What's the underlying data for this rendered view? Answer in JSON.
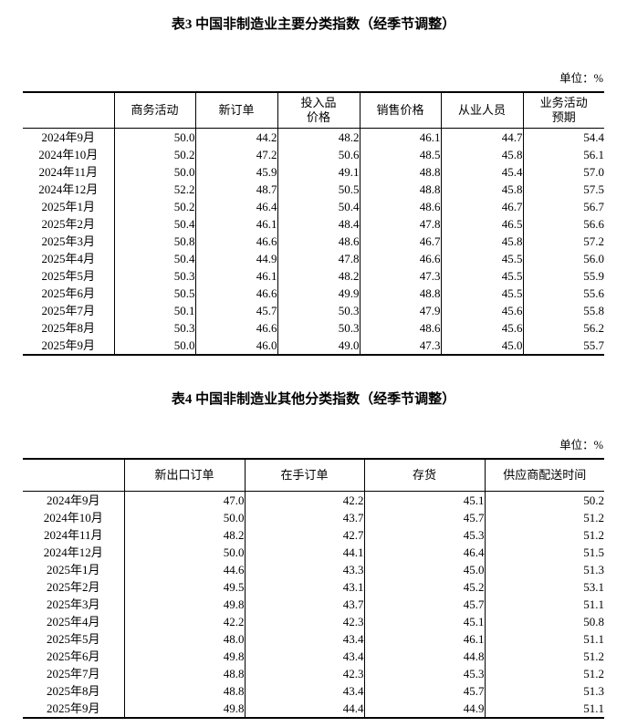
{
  "table3": {
    "title": "表3 中国非制造业主要分类指数（经季节调整）",
    "unit_label": "单位：%",
    "columns": [
      "商务活动",
      "新订单",
      "投入品\n价格",
      "销售价格",
      "从业人员",
      "业务活动\n预期"
    ],
    "rows": [
      {
        "month": "2024年9月",
        "values": [
          "50.0",
          "44.2",
          "48.2",
          "46.1",
          "44.7",
          "54.4"
        ]
      },
      {
        "month": "2024年10月",
        "values": [
          "50.2",
          "47.2",
          "50.6",
          "48.5",
          "45.8",
          "56.1"
        ]
      },
      {
        "month": "2024年11月",
        "values": [
          "50.0",
          "45.9",
          "49.1",
          "48.8",
          "45.4",
          "57.0"
        ]
      },
      {
        "month": "2024年12月",
        "values": [
          "52.2",
          "48.7",
          "50.5",
          "48.8",
          "45.8",
          "57.5"
        ]
      },
      {
        "month": "2025年1月",
        "values": [
          "50.2",
          "46.4",
          "50.4",
          "48.6",
          "46.7",
          "56.7"
        ]
      },
      {
        "month": "2025年2月",
        "values": [
          "50.4",
          "46.1",
          "48.4",
          "47.8",
          "46.5",
          "56.6"
        ]
      },
      {
        "month": "2025年3月",
        "values": [
          "50.8",
          "46.6",
          "48.6",
          "46.7",
          "45.8",
          "57.2"
        ]
      },
      {
        "month": "2025年4月",
        "values": [
          "50.4",
          "44.9",
          "47.8",
          "46.6",
          "45.5",
          "56.0"
        ]
      },
      {
        "month": "2025年5月",
        "values": [
          "50.3",
          "46.1",
          "48.2",
          "47.3",
          "45.5",
          "55.9"
        ]
      },
      {
        "month": "2025年6月",
        "values": [
          "50.5",
          "46.6",
          "49.9",
          "48.8",
          "45.5",
          "55.6"
        ]
      },
      {
        "month": "2025年7月",
        "values": [
          "50.1",
          "45.7",
          "50.3",
          "47.9",
          "45.6",
          "55.8"
        ]
      },
      {
        "month": "2025年8月",
        "values": [
          "50.3",
          "46.6",
          "50.3",
          "48.6",
          "45.6",
          "56.2"
        ]
      },
      {
        "month": "2025年9月",
        "values": [
          "50.0",
          "46.0",
          "49.0",
          "47.3",
          "45.0",
          "55.7"
        ]
      }
    ]
  },
  "table4": {
    "title": "表4 中国非制造业其他分类指数（经季节调整）",
    "unit_label": "单位：%",
    "columns": [
      "新出口订单",
      "在手订单",
      "存货",
      "供应商配送时间"
    ],
    "rows": [
      {
        "month": "2024年9月",
        "values": [
          "47.0",
          "42.2",
          "45.1",
          "50.2"
        ]
      },
      {
        "month": "2024年10月",
        "values": [
          "50.0",
          "43.7",
          "45.7",
          "51.2"
        ]
      },
      {
        "month": "2024年11月",
        "values": [
          "48.2",
          "42.7",
          "45.3",
          "51.2"
        ]
      },
      {
        "month": "2024年12月",
        "values": [
          "50.0",
          "44.1",
          "46.4",
          "51.5"
        ]
      },
      {
        "month": "2025年1月",
        "values": [
          "44.6",
          "43.3",
          "45.0",
          "51.3"
        ]
      },
      {
        "month": "2025年2月",
        "values": [
          "49.5",
          "43.1",
          "45.2",
          "53.1"
        ]
      },
      {
        "month": "2025年3月",
        "values": [
          "49.8",
          "43.7",
          "45.7",
          "51.1"
        ]
      },
      {
        "month": "2025年4月",
        "values": [
          "42.2",
          "42.3",
          "45.1",
          "50.8"
        ]
      },
      {
        "month": "2025年5月",
        "values": [
          "48.0",
          "43.4",
          "46.1",
          "51.1"
        ]
      },
      {
        "month": "2025年6月",
        "values": [
          "49.8",
          "43.4",
          "44.8",
          "51.2"
        ]
      },
      {
        "month": "2025年7月",
        "values": [
          "48.8",
          "42.3",
          "45.3",
          "51.2"
        ]
      },
      {
        "month": "2025年8月",
        "values": [
          "48.8",
          "43.4",
          "45.7",
          "51.3"
        ]
      },
      {
        "month": "2025年9月",
        "values": [
          "49.8",
          "44.4",
          "44.9",
          "51.1"
        ]
      }
    ]
  }
}
